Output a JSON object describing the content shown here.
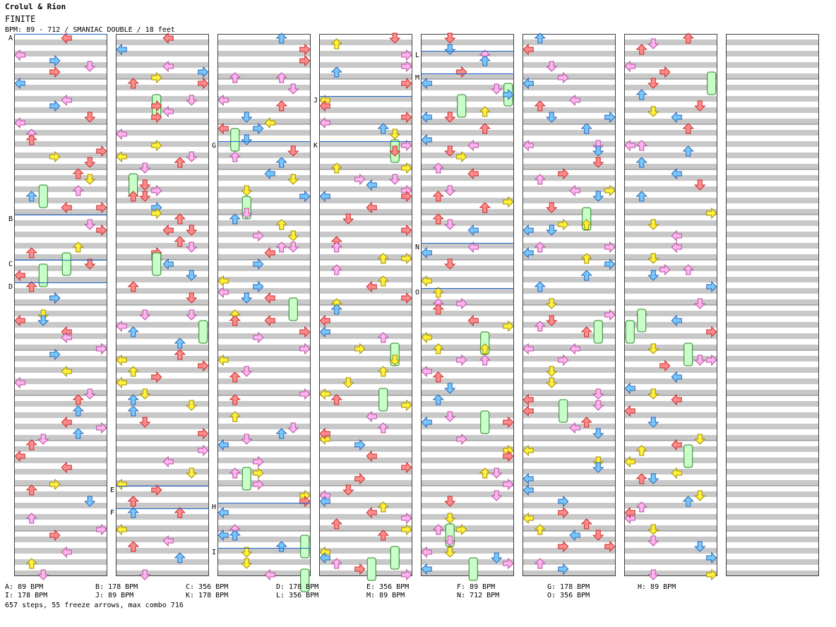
{
  "header": {
    "artist": "Crolul & Rion",
    "title": "FINITE",
    "meta": "BPM: 89 - 712 / SMANIAC DOUBLE / 18 feet"
  },
  "colors": {
    "stripe_dark": "#c8c8c8",
    "stripe_light": "#ffffff",
    "border": "#404040",
    "bpm_line": "#1e64c8",
    "arrow_red": "#ff8c8c",
    "arrow_red_stroke": "#c82828",
    "arrow_blue": "#78c8ff",
    "arrow_blue_stroke": "#2864b4",
    "arrow_yellow": "#fff03c",
    "arrow_yellow_stroke": "#a08c00",
    "arrow_pink": "#ffb4f0",
    "arrow_pink_stroke": "#b450a0",
    "freeze_fill": "#c8ffc8",
    "freeze_stroke": "#288228"
  },
  "markers": [
    {
      "label": "A",
      "col": 0,
      "beat": 0
    },
    {
      "label": "B",
      "col": 0,
      "beat": 32
    },
    {
      "label": "C",
      "col": 0,
      "beat": 40
    },
    {
      "label": "D",
      "col": 0,
      "beat": 44
    },
    {
      "label": "E",
      "col": 1,
      "beat": 80
    },
    {
      "label": "F",
      "col": 1,
      "beat": 84
    },
    {
      "label": "G",
      "col": 2,
      "beat": 19
    },
    {
      "label": "H",
      "col": 2,
      "beat": 83
    },
    {
      "label": "I",
      "col": 2,
      "beat": 91
    },
    {
      "label": "J",
      "col": 3,
      "beat": 11
    },
    {
      "label": "K",
      "col": 3,
      "beat": 19
    },
    {
      "label": "L",
      "col": 4,
      "beat": 3
    },
    {
      "label": "M",
      "col": 4,
      "beat": 7
    },
    {
      "label": "N",
      "col": 4,
      "beat": 37
    },
    {
      "label": "O",
      "col": 4,
      "beat": 45
    }
  ],
  "legend": {
    "row1": [
      "A: 89 BPM",
      "B: 178 BPM",
      "C: 356 BPM",
      "D: 178 BPM",
      "E: 356 BPM",
      "F: 89 BPM",
      "G: 178 BPM",
      "H: 89 BPM"
    ],
    "row2": [
      "I: 178 BPM",
      "J: 89 BPM",
      "K: 178 BPM",
      "L: 356 BPM",
      "M: 89 BPM",
      "N: 712 BPM",
      "O: 356 BPM"
    ]
  },
  "summary": "657 steps, 55 freeze arrows, max combo 716"
}
